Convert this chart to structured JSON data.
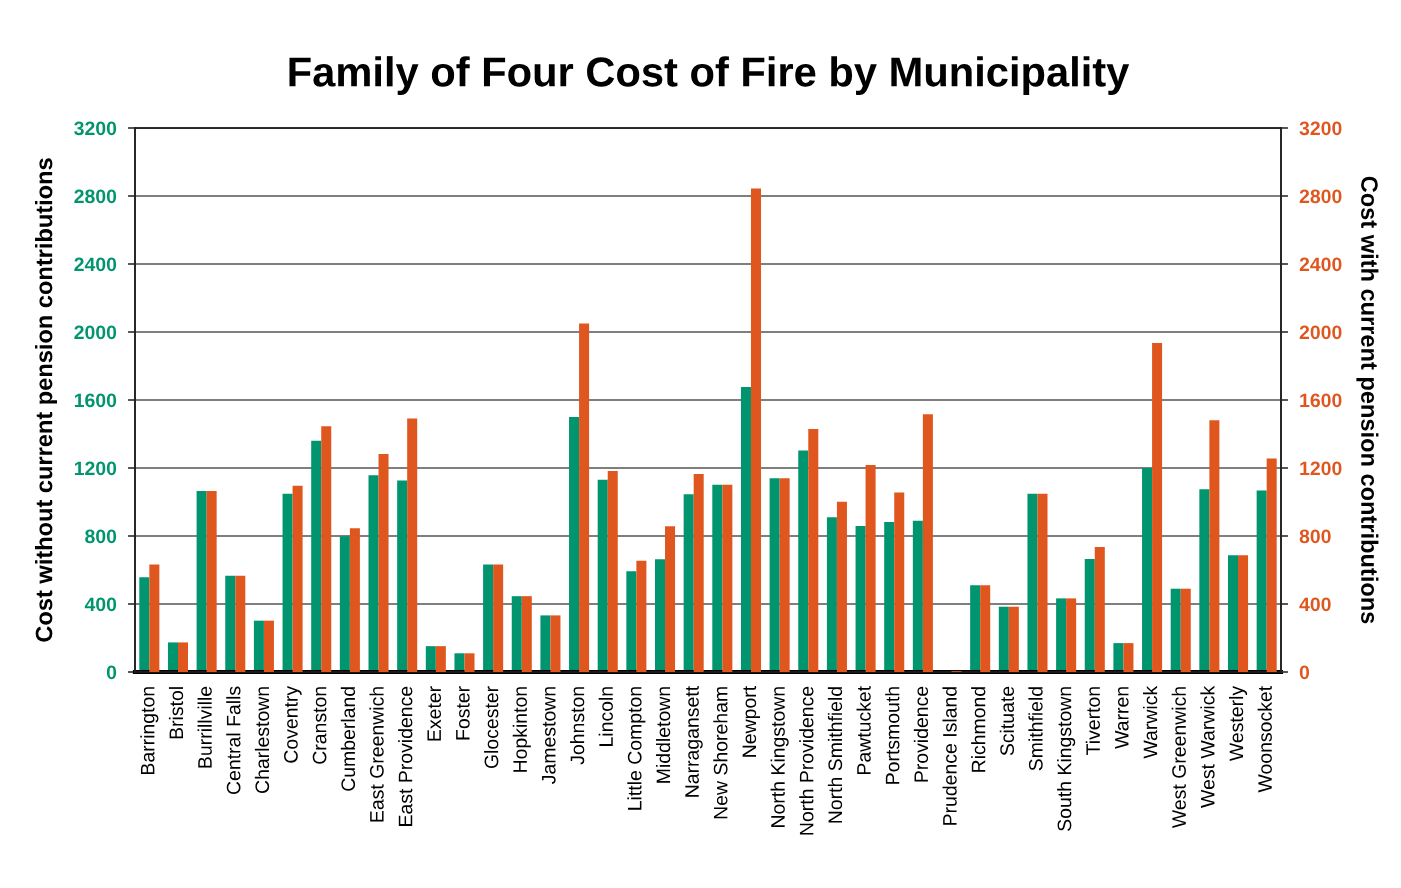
{
  "chart_data": {
    "type": "bar",
    "title": "Family of Four Cost of Fire by Municipality",
    "ylabel": "Cost without current pension contributions",
    "y2label": "Cost with current pension contributions",
    "categories": [
      "Barrington",
      "Bristol",
      "Burrillville",
      "Central Falls",
      "Charlestown",
      "Coventry",
      "Cranston",
      "Cumberland",
      "East Greenwich",
      "East Providence",
      "Exeter",
      "Foster",
      "Glocester",
      "Hopkinton",
      "Jamestown",
      "Johnston",
      "Lincoln",
      "Little Compton",
      "Middletown",
      "Narragansett",
      "New Shoreham",
      "Newport",
      "North Kingstown",
      "North Providence",
      "North Smithfield",
      "Pawtucket",
      "Portsmouth",
      "Providence",
      "Prudence Island",
      "Richmond",
      "Scituate",
      "Smithfield",
      "South Kingstown",
      "Tiverton",
      "Warren",
      "Warwick",
      "West Greenwich",
      "West Warwick",
      "Westerly",
      "Woonsocket"
    ],
    "series": [
      {
        "color": "#00956f",
        "values": [
          558,
          174,
          1065,
          566,
          302,
          1048,
          1360,
          798,
          1157,
          1126,
          152,
          110,
          632,
          446,
          333,
          1500,
          1131,
          593,
          663,
          1046,
          1101,
          1676,
          1140,
          1303,
          911,
          859,
          882,
          890,
          5,
          510,
          384,
          1048,
          433,
          665,
          170,
          1200,
          490,
          1075,
          687,
          1067
        ]
      },
      {
        "color": "#e0561f",
        "axis": "y2",
        "values": [
          632,
          174,
          1065,
          566,
          302,
          1096,
          1446,
          845,
          1282,
          1491,
          152,
          110,
          632,
          446,
          333,
          2050,
          1183,
          655,
          857,
          1164,
          1101,
          2844,
          1140,
          1430,
          1001,
          1217,
          1056,
          1516,
          5,
          510,
          384,
          1048,
          433,
          736,
          170,
          1935,
          490,
          1481,
          687,
          1256
        ]
      }
    ],
    "ylim": [
      0,
      3200
    ],
    "yticks": [
      0,
      400,
      800,
      1200,
      1600,
      2000,
      2400,
      2800,
      3200
    ],
    "y2lim": [
      0,
      3200
    ],
    "y2ticks": [
      0,
      400,
      800,
      1200,
      1600,
      2000,
      2400,
      2800,
      3200
    ],
    "grid": "y",
    "legend": false
  }
}
